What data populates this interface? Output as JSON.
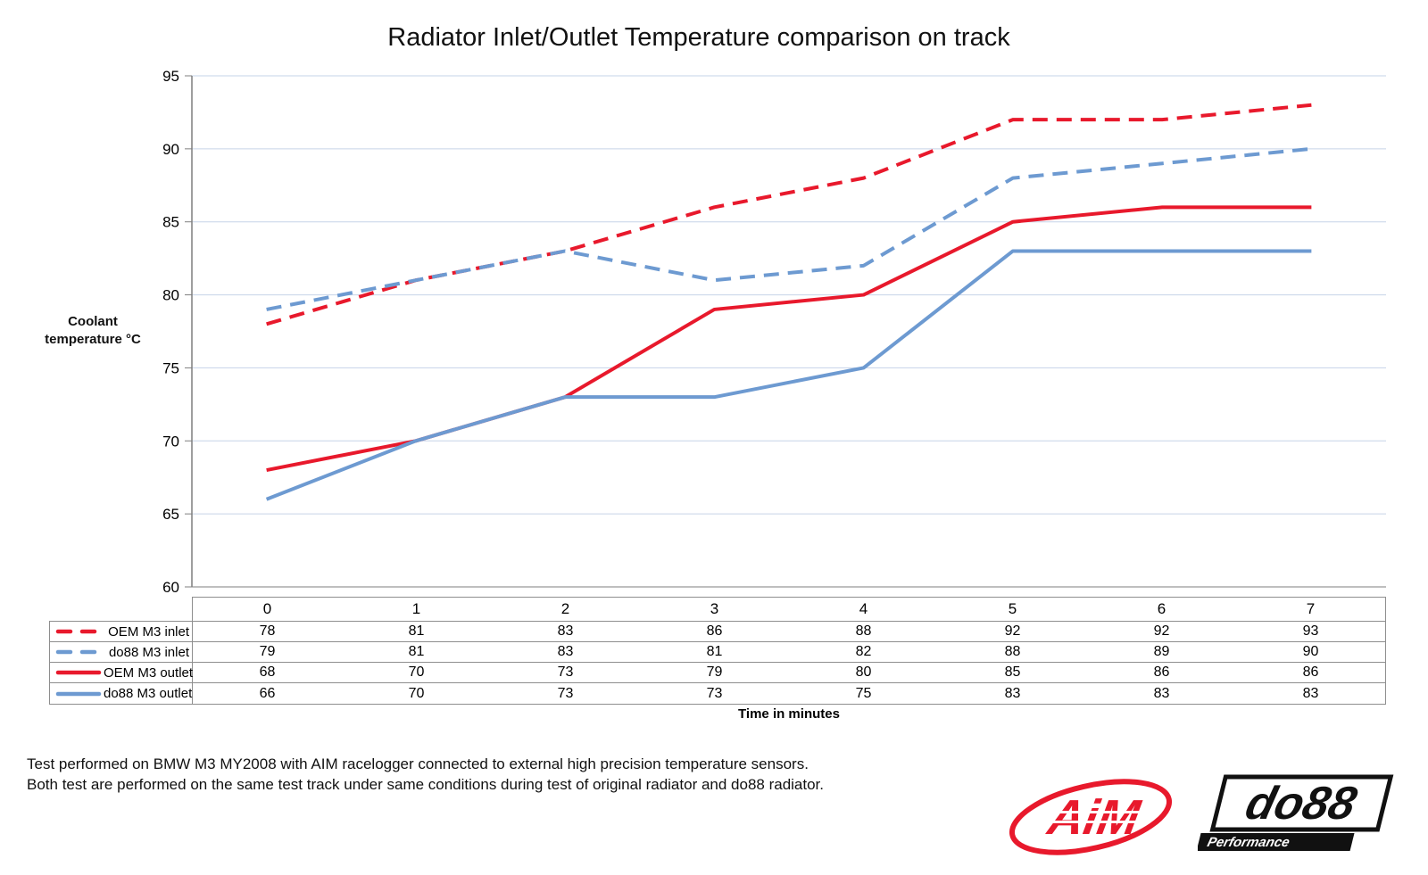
{
  "title": "Radiator Inlet/Outlet Temperature comparison on track",
  "chart_data": {
    "type": "line",
    "x": [
      0,
      1,
      2,
      3,
      4,
      5,
      6,
      7
    ],
    "xlabel": "Time in minutes",
    "ylabel_line1": "Coolant",
    "ylabel_line2": "temperature °C",
    "ylim": [
      60,
      95
    ],
    "ytick_step": 5,
    "grid": true,
    "legend_position": "table-left",
    "series": [
      {
        "name": "OEM M3 inlet",
        "dashed": true,
        "color": "#e8192c",
        "values": [
          78,
          81,
          83,
          86,
          88,
          92,
          92,
          93
        ]
      },
      {
        "name": "do88 M3 inlet",
        "dashed": true,
        "color": "#6d9ad1",
        "values": [
          79,
          81,
          83,
          81,
          82,
          88,
          89,
          90
        ]
      },
      {
        "name": "OEM M3 outlet",
        "dashed": false,
        "color": "#e8192c",
        "values": [
          68,
          70,
          73,
          79,
          80,
          85,
          86,
          86
        ]
      },
      {
        "name": "do88 M3 outlet",
        "dashed": false,
        "color": "#6d9ad1",
        "values": [
          66,
          70,
          73,
          73,
          75,
          83,
          83,
          83
        ]
      }
    ]
  },
  "colors": {
    "grid": "#c6d3e8",
    "axis": "#7f7f7f",
    "series_red": "#e8192c",
    "series_blue": "#6d9ad1",
    "logo_red": "#e8192c",
    "logo_black": "#111111"
  },
  "footer": {
    "line1": "Test performed on BMW M3 MY2008 with AIM racelogger connected to external high precision temperature sensors.",
    "line2": "Both test are performed on the same test track under same conditions during test of original radiator and do88 radiator."
  },
  "logos": {
    "aim_text": "AiM",
    "do88_text": "do88",
    "do88_subtext": "Performance"
  }
}
